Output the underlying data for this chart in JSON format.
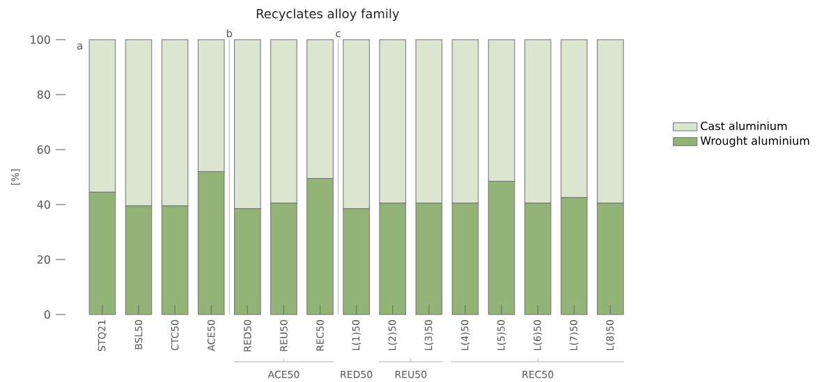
{
  "chart_data": {
    "type": "bar",
    "stacked": true,
    "title": "Recyclates alloy family",
    "ylabel": "[%]",
    "categories": [
      "STQ21",
      "BSL50",
      "CTC50",
      "ACE50",
      "RED50",
      "REU50",
      "REC50",
      "L(1)50",
      "L(2)50",
      "L(3)50",
      "L(4)50",
      "L(5)50",
      "L(6)50",
      "L(7)50",
      "L(8)50"
    ],
    "series": [
      {
        "name": "Wrought aluminium",
        "color": "#92b577",
        "values": [
          44.5,
          39.5,
          39.5,
          52,
          38.5,
          40.5,
          49.5,
          38.5,
          40.5,
          40.5,
          40.5,
          48.5,
          40.5,
          42.5,
          40.5
        ]
      },
      {
        "name": "Cast aluminium",
        "color": "#dbe5d0",
        "values": [
          55.5,
          60.5,
          60.5,
          48,
          61.5,
          59.5,
          50.5,
          61.5,
          59.5,
          59.5,
          59.5,
          51.5,
          59.5,
          57.5,
          59.5
        ]
      }
    ],
    "ylim": [
      0,
      100
    ],
    "yticks": [
      0,
      20,
      40,
      60,
      80,
      100
    ],
    "legend": "right",
    "annotations": [
      "a",
      "b",
      "c",
      "ACE50",
      "RED50",
      "REU50",
      "REC50"
    ]
  }
}
